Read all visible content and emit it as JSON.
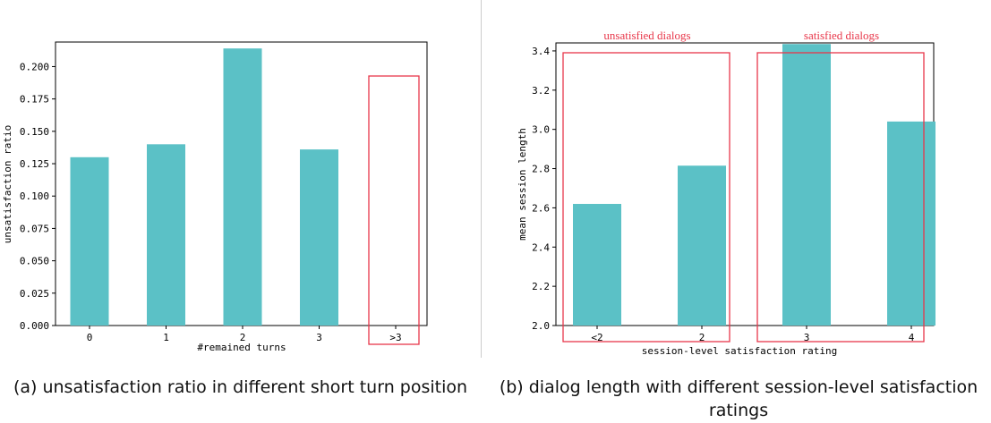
{
  "chart_data": [
    {
      "type": "bar",
      "categories": [
        "0",
        "1",
        "2",
        "3",
        ">3"
      ],
      "values": [
        0.13,
        0.14,
        0.214,
        0.136,
        null
      ],
      "xlabel": "#remained turns",
      "ylabel": "unsatisfaction ratio",
      "ylim": [
        0,
        0.22
      ],
      "yticks": [
        "0.000",
        "0.025",
        "0.050",
        "0.075",
        "0.100",
        "0.125",
        "0.150",
        "0.175",
        "0.200"
      ],
      "bar_color": "#5bc1c6",
      "highlight_color": "#e8374a",
      "caption": "(a) unsatisfaction ratio in different short turn position"
    },
    {
      "type": "bar",
      "categories": [
        "<2",
        "2",
        "3",
        "4"
      ],
      "values": [
        2.62,
        2.815,
        3.435,
        3.04
      ],
      "xlabel": "session-level satisfaction rating",
      "ylabel": "mean session length",
      "ylim": [
        2.0,
        3.5
      ],
      "yticks": [
        "2.0",
        "2.2",
        "2.4",
        "2.6",
        "2.8",
        "3.0",
        "3.2",
        "3.4"
      ],
      "bar_color": "#5bc1c6",
      "highlight_color": "#e8374a",
      "annotations": [
        "unsatisfied dialogs",
        "satisfied dialogs"
      ],
      "caption": "(b) dialog length with different session-level satisfaction ratings"
    }
  ]
}
